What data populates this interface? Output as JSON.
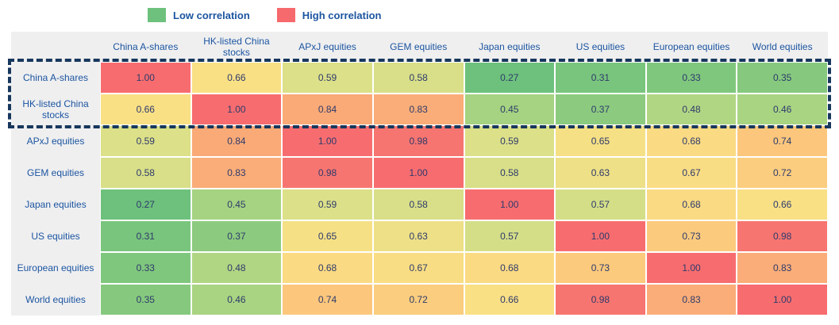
{
  "legend": {
    "low_label": "Low correlation",
    "high_label": "High correlation",
    "low_color": "#6DC17C",
    "high_color": "#F6696C"
  },
  "colors": {
    "header_bg": "#EFEFF0",
    "label_text": "#1C55A0",
    "value_text": "#2E3A6C",
    "grid_line": "#FFFFFF",
    "highlight_border": "#17375D"
  },
  "chart_data": {
    "type": "heatmap",
    "title": "",
    "categories": [
      "China A-shares",
      "HK-listed China stocks",
      "APxJ equities",
      "GEM equities",
      "Japan equities",
      "US equities",
      "European equities",
      "World equities"
    ],
    "matrix": [
      [
        1.0,
        0.66,
        0.59,
        0.58,
        0.27,
        0.31,
        0.33,
        0.35
      ],
      [
        0.66,
        1.0,
        0.84,
        0.83,
        0.45,
        0.37,
        0.48,
        0.46
      ],
      [
        0.59,
        0.84,
        1.0,
        0.98,
        0.59,
        0.65,
        0.68,
        0.74
      ],
      [
        0.58,
        0.83,
        0.98,
        1.0,
        0.58,
        0.63,
        0.67,
        0.72
      ],
      [
        0.27,
        0.45,
        0.59,
        0.58,
        1.0,
        0.57,
        0.68,
        0.66
      ],
      [
        0.31,
        0.37,
        0.65,
        0.63,
        0.57,
        1.0,
        0.73,
        0.98
      ],
      [
        0.33,
        0.48,
        0.68,
        0.67,
        0.68,
        0.73,
        1.0,
        0.83
      ],
      [
        0.35,
        0.46,
        0.74,
        0.72,
        0.66,
        0.98,
        0.83,
        1.0
      ]
    ],
    "value_format": "2dp",
    "value_range": [
      0,
      1
    ],
    "color_scale": [
      {
        "value": 0.27,
        "color": "#6DC17C"
      },
      {
        "value": 0.45,
        "color": "#A5D381"
      },
      {
        "value": 0.59,
        "color": "#DCE088"
      },
      {
        "value": 0.66,
        "color": "#F9E085"
      },
      {
        "value": 0.74,
        "color": "#FCC77C"
      },
      {
        "value": 0.84,
        "color": "#FAAA77"
      },
      {
        "value": 1.0,
        "color": "#F76D6F"
      }
    ],
    "highlight": {
      "rows": [
        "China A-shares",
        "HK-listed China stocks"
      ],
      "style": "dashed-outline",
      "color": "#17375D"
    },
    "legend_position": "top",
    "grid": "white-2px"
  }
}
